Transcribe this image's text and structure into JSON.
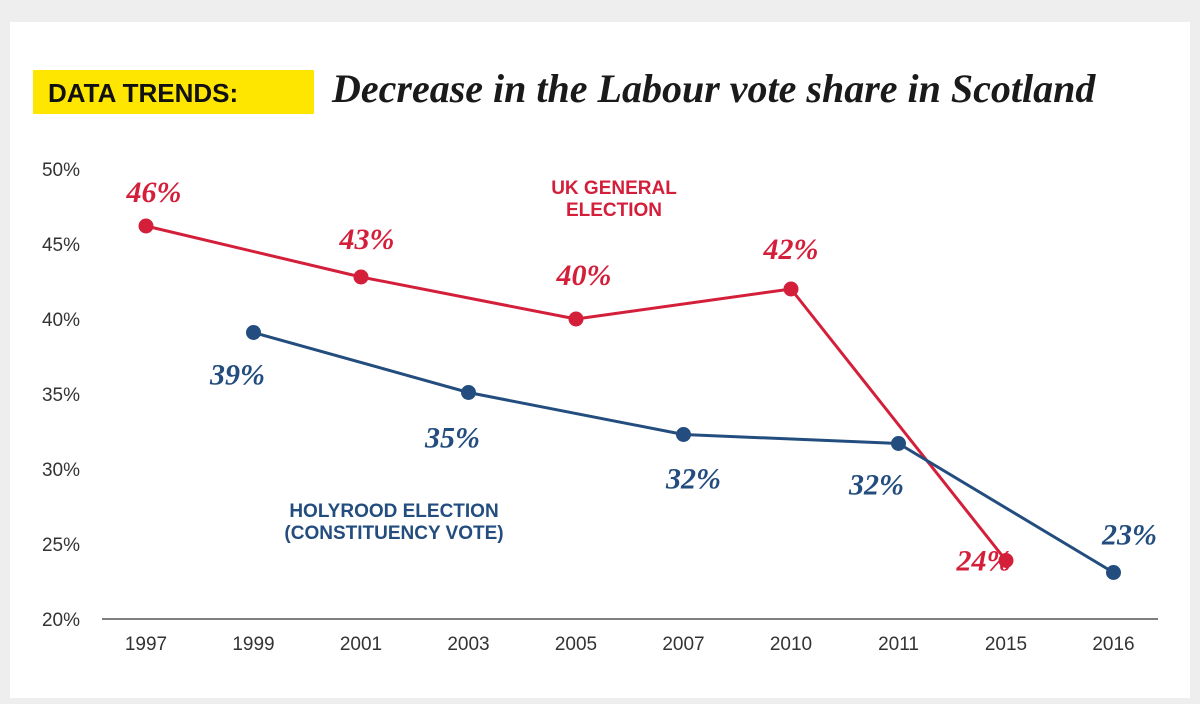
{
  "title": {
    "tag": "DATA TRENDS:",
    "text": "Decrease in the Labour vote share in Scotland",
    "tag_bg": "#ffe600"
  },
  "chart_data": {
    "type": "line",
    "categories": [
      "1997",
      "1999",
      "2001",
      "2003",
      "2005",
      "2007",
      "2010",
      "2011",
      "2015",
      "2016"
    ],
    "ylim": [
      20,
      50
    ],
    "yticks": [
      "20%",
      "25%",
      "30%",
      "35%",
      "40%",
      "45%",
      "50%"
    ],
    "ytick_values": [
      20,
      25,
      30,
      35,
      40,
      45,
      50
    ],
    "grid": false,
    "series": [
      {
        "name_lines": [
          "UK GENERAL",
          "ELECTION"
        ],
        "color": "#d41f3b",
        "points": [
          {
            "x": "1997",
            "y": 46.2,
            "label": "46%"
          },
          {
            "x": "2001",
            "y": 42.8,
            "label": "43%"
          },
          {
            "x": "2005",
            "y": 40.0,
            "label": "40%"
          },
          {
            "x": "2010",
            "y": 42.0,
            "label": "42%"
          },
          {
            "x": "2015",
            "y": 23.9,
            "label": "24%"
          }
        ]
      },
      {
        "name_lines": [
          "HOLYROOD ELECTION",
          "(CONSTITUENCY VOTE)"
        ],
        "color": "#234d7e",
        "points": [
          {
            "x": "1999",
            "y": 39.1,
            "label": "39%"
          },
          {
            "x": "2003",
            "y": 35.1,
            "label": "35%"
          },
          {
            "x": "2007",
            "y": 32.3,
            "label": "32%"
          },
          {
            "x": "2011",
            "y": 31.7,
            "label": "32%"
          },
          {
            "x": "2016",
            "y": 23.1,
            "label": "23%"
          }
        ]
      }
    ]
  }
}
